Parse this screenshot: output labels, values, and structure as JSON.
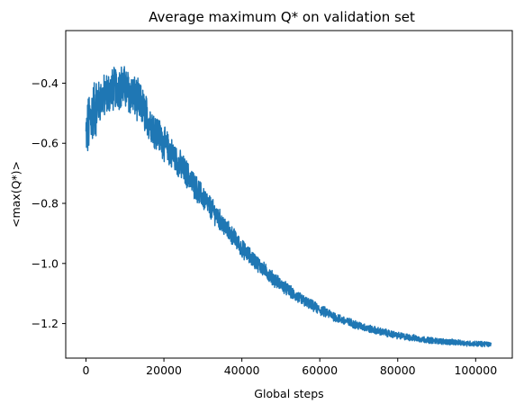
{
  "chart_data": {
    "type": "line",
    "title": "Average maximum Q* on validation set",
    "xlabel": "Global steps",
    "ylabel": "<max(Q*)>",
    "xlim": [
      -5200,
      109400
    ],
    "ylim": [
      -1.315,
      -0.225
    ],
    "x_ticks": [
      0,
      20000,
      40000,
      60000,
      80000,
      100000
    ],
    "x_tick_labels": [
      "0",
      "20000",
      "40000",
      "60000",
      "80000",
      "100000"
    ],
    "y_ticks": [
      -1.2,
      -1.0,
      -0.8,
      -0.6,
      -0.4
    ],
    "y_tick_labels": [
      "−1.2",
      "−1.0",
      "−0.8",
      "−0.6",
      "−0.4"
    ],
    "grid": false,
    "legend": "none",
    "line_color": "#1f77b4",
    "series": [
      {
        "x": [
          0,
          1000,
          2000,
          3000,
          4000,
          5000,
          6000,
          7000,
          8000,
          9000,
          10000,
          12000,
          14000,
          16000,
          18000,
          20000,
          22000,
          24000,
          26000,
          28000,
          30000,
          32000,
          34000,
          36000,
          38000,
          40000,
          42000,
          44000,
          46000,
          48000,
          50000,
          52000,
          54000,
          56000,
          58000,
          60000,
          62000,
          64000,
          66000,
          68000,
          70000,
          72000,
          74000,
          76000,
          78000,
          80000,
          82000,
          84000,
          86000,
          88000,
          90000,
          92000,
          94000,
          96000,
          98000,
          100000,
          102000,
          104000
        ],
        "y": [
          -0.58,
          -0.52,
          -0.49,
          -0.47,
          -0.45,
          -0.44,
          -0.43,
          -0.42,
          -0.415,
          -0.41,
          -0.415,
          -0.44,
          -0.47,
          -0.52,
          -0.56,
          -0.6,
          -0.635,
          -0.67,
          -0.705,
          -0.745,
          -0.78,
          -0.815,
          -0.85,
          -0.885,
          -0.915,
          -0.95,
          -0.975,
          -1.0,
          -1.025,
          -1.05,
          -1.07,
          -1.09,
          -1.11,
          -1.125,
          -1.14,
          -1.155,
          -1.165,
          -1.178,
          -1.19,
          -1.198,
          -1.207,
          -1.215,
          -1.222,
          -1.228,
          -1.234,
          -1.24,
          -1.244,
          -1.248,
          -1.252,
          -1.255,
          -1.258,
          -1.26,
          -1.262,
          -1.264,
          -1.266,
          -1.267,
          -1.268,
          -1.27
        ]
      }
    ]
  }
}
